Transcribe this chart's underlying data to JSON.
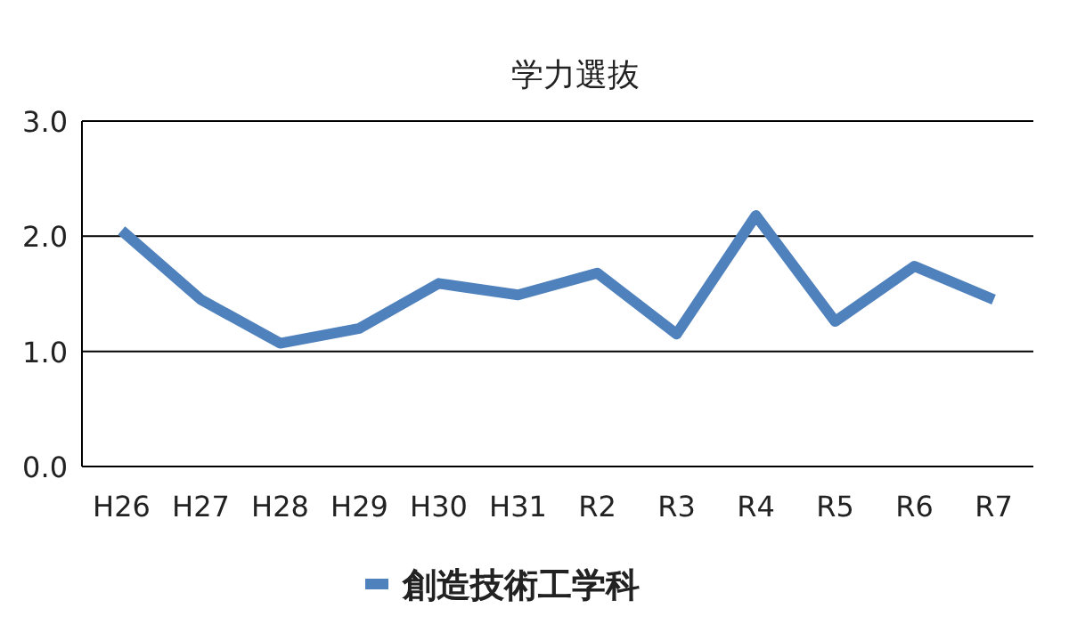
{
  "chart_data": {
    "type": "line",
    "title": "学力選抜",
    "categories": [
      "H26",
      "H27",
      "H28",
      "H29",
      "H30",
      "H31",
      "R2",
      "R3",
      "R4",
      "R5",
      "R6",
      "R7"
    ],
    "series": [
      {
        "name": "創造技術工学科",
        "color": "#4f81bd",
        "values": [
          2.05,
          1.45,
          1.07,
          1.2,
          1.59,
          1.49,
          1.68,
          1.15,
          2.18,
          1.26,
          1.74,
          1.45
        ]
      }
    ],
    "ylim": [
      0,
      3
    ],
    "yticks": [
      {
        "value": 0,
        "label": "0.0"
      },
      {
        "value": 1,
        "label": "1.0"
      },
      {
        "value": 2,
        "label": "2.0"
      },
      {
        "value": 3,
        "label": "3.0"
      }
    ],
    "grid": "y",
    "legend": "bottom",
    "marker": "none",
    "line_style": "solid"
  }
}
